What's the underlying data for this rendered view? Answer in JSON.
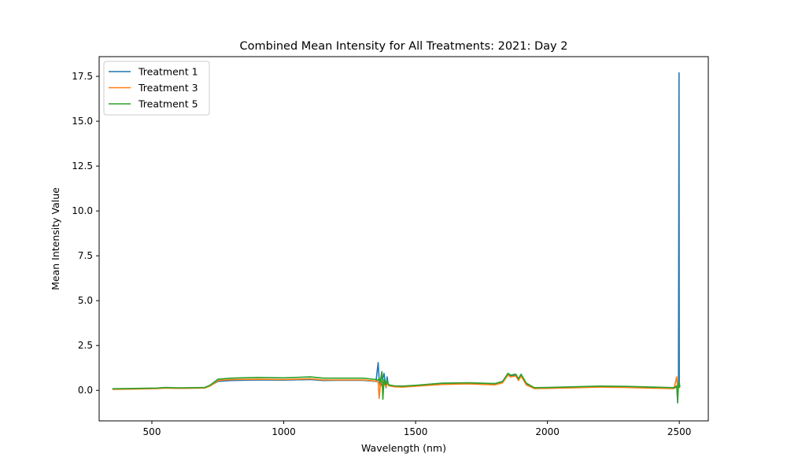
{
  "chart_data": {
    "type": "line",
    "title": "Combined Mean Intensity for All Treatments: 2021: Day 2",
    "xlabel": "Wavelength (nm)",
    "ylabel": "Mean Intensity Value",
    "xlim": [
      300,
      2610
    ],
    "ylim": [
      -1.7,
      18.6
    ],
    "xticks": [
      500,
      1000,
      1500,
      2000,
      2500
    ],
    "xtick_labels": [
      "500",
      "1000",
      "1500",
      "2000",
      "2500"
    ],
    "yticks": [
      0.0,
      2.5,
      5.0,
      7.5,
      10.0,
      12.5,
      15.0,
      17.5
    ],
    "ytick_labels": [
      "0.0",
      "2.5",
      "5.0",
      "7.5",
      "10.0",
      "12.5",
      "15.0",
      "17.5"
    ],
    "grid": false,
    "legend": "top-left",
    "series": [
      {
        "name": "Treatment 1",
        "color": "#1f77b4",
        "x": [
          350,
          450,
          520,
          550,
          600,
          700,
          720,
          750,
          800,
          900,
          1000,
          1100,
          1150,
          1200,
          1300,
          1350,
          1358,
          1362,
          1366,
          1372,
          1380,
          1388,
          1392,
          1396,
          1400,
          1420,
          1450,
          1500,
          1600,
          1700,
          1800,
          1830,
          1850,
          1860,
          1880,
          1890,
          1900,
          1920,
          1950,
          2000,
          2100,
          2200,
          2300,
          2400,
          2480,
          2490,
          2494,
          2497,
          2499,
          2500,
          2501,
          2503
        ],
        "y": [
          0.07,
          0.09,
          0.11,
          0.14,
          0.12,
          0.14,
          0.25,
          0.5,
          0.55,
          0.58,
          0.57,
          0.6,
          0.55,
          0.56,
          0.56,
          0.5,
          1.55,
          0.6,
          0.2,
          0.45,
          0.95,
          0.15,
          0.75,
          0.35,
          0.3,
          0.22,
          0.2,
          0.25,
          0.35,
          0.38,
          0.33,
          0.45,
          0.9,
          0.8,
          0.85,
          0.6,
          0.85,
          0.35,
          0.12,
          0.13,
          0.16,
          0.2,
          0.18,
          0.14,
          0.12,
          0.2,
          0.35,
          0.15,
          17.7,
          0.2,
          0.3,
          0.25
        ]
      },
      {
        "name": "Treatment 3",
        "color": "#ff7f0e",
        "x": [
          350,
          450,
          520,
          550,
          600,
          700,
          720,
          750,
          800,
          900,
          1000,
          1100,
          1150,
          1200,
          1300,
          1350,
          1358,
          1362,
          1366,
          1372,
          1380,
          1388,
          1392,
          1396,
          1400,
          1420,
          1450,
          1500,
          1600,
          1700,
          1800,
          1830,
          1850,
          1860,
          1880,
          1890,
          1900,
          1920,
          1950,
          2000,
          2100,
          2200,
          2300,
          2400,
          2480,
          2490,
          2494,
          2497,
          2500,
          2503
        ],
        "y": [
          0.06,
          0.08,
          0.1,
          0.13,
          0.11,
          0.13,
          0.24,
          0.55,
          0.6,
          0.62,
          0.6,
          0.64,
          0.58,
          0.58,
          0.58,
          0.52,
          0.45,
          -0.45,
          0.3,
          0.55,
          0.4,
          0.2,
          0.45,
          0.3,
          0.25,
          0.2,
          0.18,
          0.23,
          0.33,
          0.36,
          0.31,
          0.42,
          0.85,
          0.75,
          0.8,
          0.55,
          0.8,
          0.3,
          0.1,
          0.11,
          0.14,
          0.18,
          0.16,
          0.12,
          0.1,
          0.75,
          0.1,
          0.3,
          0.15,
          0.2
        ]
      },
      {
        "name": "Treatment 5",
        "color": "#2ca02c",
        "x": [
          350,
          450,
          520,
          550,
          600,
          700,
          720,
          750,
          800,
          900,
          1000,
          1100,
          1150,
          1200,
          1300,
          1350,
          1358,
          1362,
          1366,
          1372,
          1376,
          1380,
          1386,
          1392,
          1396,
          1400,
          1420,
          1450,
          1500,
          1600,
          1700,
          1800,
          1830,
          1850,
          1860,
          1880,
          1890,
          1900,
          1920,
          1950,
          2000,
          2100,
          2200,
          2300,
          2400,
          2480,
          2490,
          2494,
          2497,
          2500,
          2503
        ],
        "y": [
          0.09,
          0.11,
          0.13,
          0.16,
          0.14,
          0.16,
          0.28,
          0.62,
          0.68,
          0.72,
          0.7,
          0.75,
          0.68,
          0.68,
          0.68,
          0.6,
          0.55,
          0.7,
          0.45,
          1.05,
          -0.5,
          0.6,
          0.3,
          0.55,
          0.35,
          0.3,
          0.25,
          0.24,
          0.28,
          0.4,
          0.42,
          0.38,
          0.5,
          0.95,
          0.85,
          0.9,
          0.65,
          0.9,
          0.4,
          0.15,
          0.16,
          0.2,
          0.24,
          0.22,
          0.18,
          0.15,
          0.25,
          -0.7,
          0.45,
          0.2,
          0.25
        ]
      }
    ]
  }
}
